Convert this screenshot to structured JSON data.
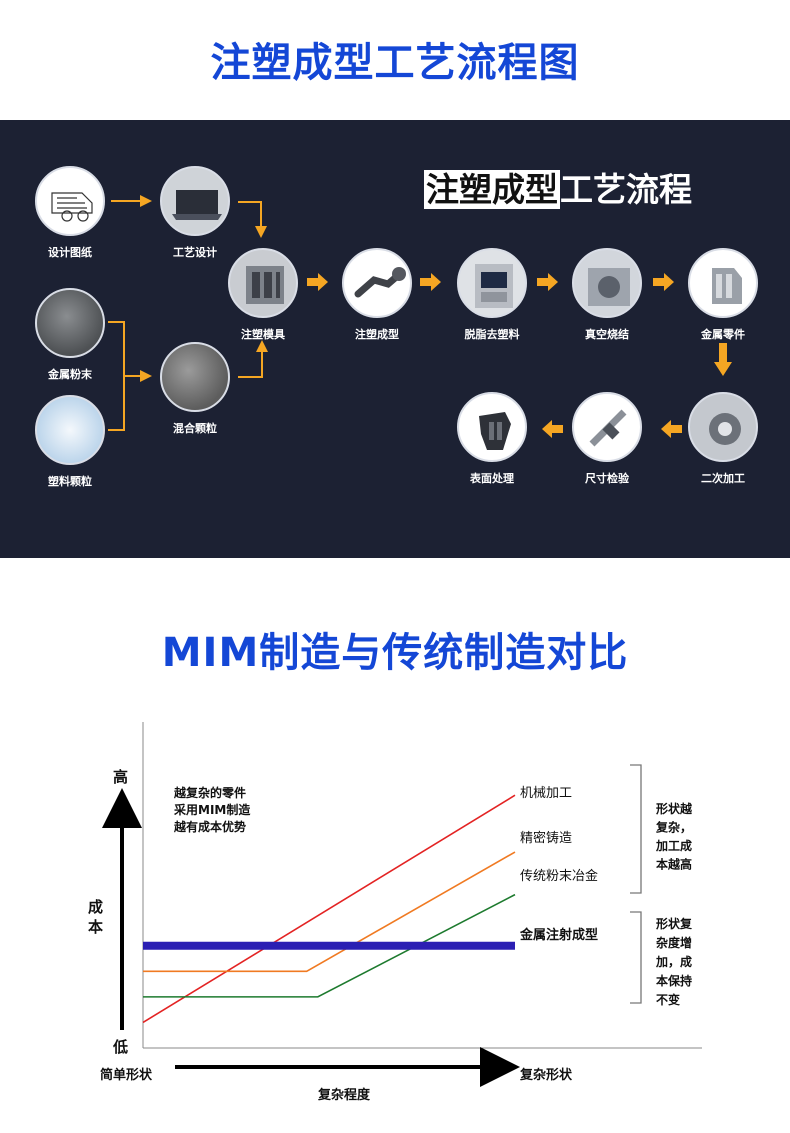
{
  "section1": {
    "title": "注塑成型工艺流程图"
  },
  "flow": {
    "title_highlight": "注塑成型",
    "title_rest": "工艺流程",
    "nodes": [
      {
        "id": "design-drawing",
        "label": "设计图纸"
      },
      {
        "id": "process-design",
        "label": "工艺设计"
      },
      {
        "id": "metal-powder",
        "label": "金属粉末"
      },
      {
        "id": "plastic-granules",
        "label": "塑料颗粒"
      },
      {
        "id": "mixed-granules",
        "label": "混合颗粒"
      },
      {
        "id": "injection-mold",
        "label": "注塑模具"
      },
      {
        "id": "injection-molding",
        "label": "注塑成型"
      },
      {
        "id": "debinding",
        "label": "脱脂去塑料"
      },
      {
        "id": "vacuum-sintering",
        "label": "真空烧结"
      },
      {
        "id": "metal-part",
        "label": "金属零件"
      },
      {
        "id": "secondary-machining",
        "label": "二次加工"
      },
      {
        "id": "dimension-inspection",
        "label": "尺寸检验"
      },
      {
        "id": "surface-treatment",
        "label": "表面处理"
      }
    ],
    "arrow_color": "#f5a623"
  },
  "section2": {
    "title": "MIM制造与传统制造对比"
  },
  "chart": {
    "y_high": "高",
    "y_low": "低",
    "y_label": "成本",
    "x_left": "简单形状",
    "x_right": "复杂形状",
    "x_label": "复杂程度",
    "note_lines": [
      "越复杂的零件",
      "采用MIM制造",
      "越有成本优势"
    ],
    "bracket_top_lines": [
      "形状越",
      "复杂，",
      "加工成",
      "本越高"
    ],
    "bracket_bottom_lines": [
      "形状复",
      "杂度增",
      "加，成",
      "本保持",
      "不变"
    ]
  },
  "chart_data": {
    "type": "line",
    "xlabel": "复杂程度",
    "ylabel": "成本",
    "x_ticks": [
      "简单形状",
      "复杂形状"
    ],
    "y_ticks": [
      "低",
      "高"
    ],
    "xlim": [
      0,
      100
    ],
    "ylim": [
      0,
      100
    ],
    "series": [
      {
        "name": "机械加工",
        "color": "#e32323",
        "x": [
          0,
          100
        ],
        "y": [
          9,
          89
        ]
      },
      {
        "name": "精密铸造",
        "color": "#f07a22",
        "x": [
          0,
          44,
          100
        ],
        "y": [
          27,
          27,
          69
        ]
      },
      {
        "name": "传统粉末冶金",
        "color": "#1d7a2e",
        "x": [
          0,
          47,
          100
        ],
        "y": [
          18,
          18,
          54
        ]
      },
      {
        "name": "金属注射成型",
        "color": "#2b1fb3",
        "x": [
          0,
          100
        ],
        "y": [
          36,
          36
        ]
      }
    ]
  }
}
